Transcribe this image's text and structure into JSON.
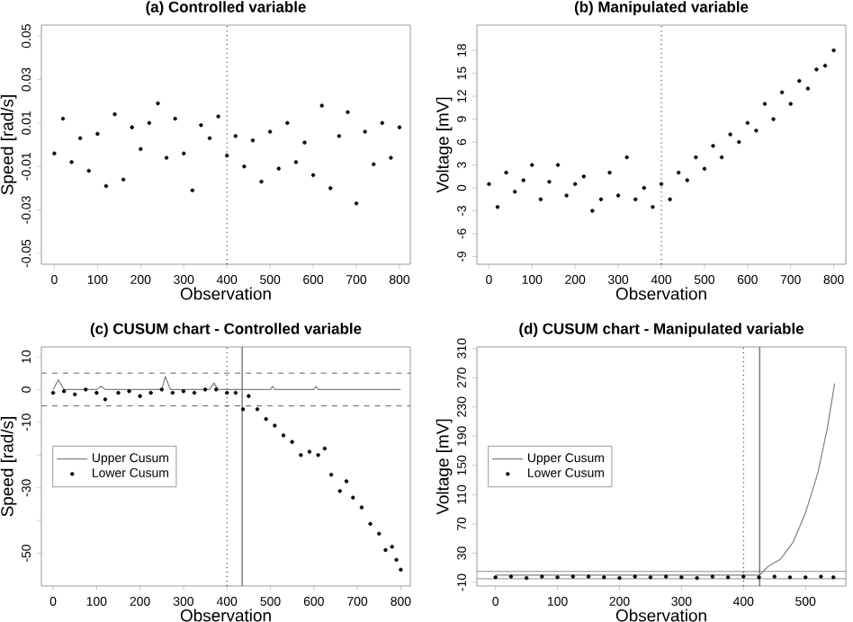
{
  "chart_data": [
    {
      "type": "scatter",
      "title": "**(a) Controlled variable**",
      "xlabel": "Observation",
      "ylabel": "Speed [rad/s]",
      "marker": "circle",
      "xlim": [
        -30,
        825
      ],
      "ylim": [
        -0.055,
        0.055
      ],
      "xticks": [
        0,
        100,
        200,
        300,
        400,
        500,
        600,
        700,
        800
      ],
      "yticks": [
        -0.05,
        -0.03,
        -0.01,
        0.01,
        0.03,
        0.05
      ],
      "x": [
        0,
        20,
        40,
        60,
        80,
        100,
        120,
        140,
        160,
        180,
        200,
        220,
        240,
        260,
        280,
        300,
        320,
        340,
        360,
        380,
        400,
        420,
        440,
        460,
        480,
        500,
        520,
        540,
        560,
        580,
        600,
        620,
        640,
        660,
        680,
        700,
        720,
        740,
        760,
        780,
        800
      ],
      "series": [
        {
          "color": "#000000",
          "values": [
            -0.004,
            0.012,
            -0.008,
            0.003,
            -0.012,
            0.005,
            -0.019,
            0.014,
            -0.016,
            0.008,
            -0.002,
            0.01,
            0.019,
            -0.006,
            0.012,
            -0.004,
            -0.021,
            0.009,
            0.003,
            0.013,
            -0.005,
            0.004,
            -0.01,
            0.002,
            -0.017,
            0.006,
            -0.011,
            0.01,
            -0.008,
            0.001,
            -0.014,
            0.018,
            -0.02,
            0.004,
            0.015,
            -0.027,
            0.006,
            -0.009,
            0.01,
            -0.006,
            0.008
          ]
        }
      ],
      "ref_lines": [
        {
          "axis": "x",
          "value": 400,
          "line_style": "dotted",
          "color": "#000000"
        }
      ]
    },
    {
      "type": "scatter",
      "title": "**(b) Manipulated variable**",
      "xlabel": "Observation",
      "ylabel": "Voltage [mV]",
      "marker": "circle",
      "xlim": [
        -28,
        828
      ],
      "ylim": [
        -10,
        21.3
      ],
      "xticks": [
        0,
        100,
        200,
        300,
        400,
        500,
        600,
        700,
        800
      ],
      "yticks": [
        -9,
        -6,
        -3,
        0,
        3,
        6,
        9,
        12,
        15,
        18
      ],
      "x": [
        0,
        20,
        40,
        60,
        80,
        100,
        120,
        140,
        160,
        180,
        200,
        220,
        240,
        260,
        280,
        300,
        320,
        340,
        360,
        380,
        400,
        420,
        440,
        460,
        480,
        500,
        520,
        540,
        560,
        580,
        600,
        620,
        640,
        660,
        680,
        700,
        720,
        740,
        760,
        780,
        800
      ],
      "series": [
        {
          "color": "#000000",
          "values": [
            0.5,
            -2.5,
            2.0,
            -0.5,
            1.0,
            3.0,
            -1.5,
            0.8,
            3.0,
            -1.0,
            0.5,
            1.5,
            -3.0,
            -1.5,
            2.0,
            -1.0,
            4.0,
            -1.5,
            0.0,
            -2.5,
            0.5,
            -1.5,
            2.0,
            1.0,
            4.0,
            2.5,
            5.5,
            4.0,
            7.0,
            6.0,
            8.5,
            7.5,
            11.0,
            9.0,
            12.5,
            11.0,
            14.0,
            13.0,
            15.5,
            16.0,
            18.0
          ]
        }
      ],
      "ref_lines": [
        {
          "axis": "x",
          "value": 400,
          "line_style": "dotted",
          "color": "#000000"
        }
      ]
    },
    {
      "type": "line",
      "title": "**(c) CUSUM chart - Controlled variable**",
      "xlabel": "Observation",
      "ylabel": "Speed [rad/s]",
      "legend": "left",
      "xlim": [
        -27,
        822
      ],
      "ylim": [
        -60,
        13
      ],
      "xticks": [
        0,
        100,
        200,
        300,
        400,
        500,
        600,
        700,
        800
      ],
      "yticks": [
        -50,
        {
          "value": -40,
          "label": null
        },
        -30,
        {
          "value": -20,
          "label": null
        },
        -10,
        0,
        10
      ],
      "series": [
        {
          "name": "Upper Cusum",
          "type": "line",
          "marker": "none",
          "color": "#808080",
          "x": [
            0,
            12,
            25,
            100,
            110,
            120,
            250,
            258,
            270,
            360,
            370,
            380,
            500,
            505,
            510,
            600,
            605,
            610,
            800
          ],
          "values": [
            0,
            3,
            0,
            0,
            1,
            0,
            0,
            4,
            0,
            0,
            2,
            0,
            0,
            1,
            0,
            0,
            1,
            0,
            0
          ]
        },
        {
          "name": "Lower Cusum",
          "type": "scatter",
          "marker": "circle",
          "color": "#000000",
          "x": [
            0,
            25,
            50,
            75,
            100,
            120,
            150,
            175,
            200,
            225,
            250,
            275,
            300,
            325,
            350,
            375,
            400,
            420,
            437,
            450,
            470,
            490,
            510,
            530,
            550,
            570,
            590,
            610,
            625,
            640,
            660,
            675,
            690,
            710,
            730,
            750,
            765,
            780,
            790,
            800
          ],
          "values": [
            -1,
            -0.5,
            -1.5,
            0,
            -1,
            -3,
            -1,
            -0.5,
            -2,
            -1,
            0,
            -1,
            -0.5,
            -1,
            0,
            0,
            -1,
            -1,
            -6,
            -2,
            -6,
            -9,
            -11,
            -14,
            -16,
            -20,
            -19,
            -20,
            -18,
            -26,
            -31,
            -28,
            -33,
            -36,
            -41,
            -44,
            -49,
            -48,
            -52,
            -55
          ]
        }
      ],
      "ref_lines": [
        {
          "axis": "y",
          "value": 5,
          "line_style": "dashed",
          "color": "#606060"
        },
        {
          "axis": "y",
          "value": -5,
          "line_style": "dashed",
          "color": "#606060"
        },
        {
          "axis": "x",
          "value": 400,
          "line_style": "dotted",
          "color": "#000000"
        },
        {
          "axis": "x",
          "value": 435,
          "line_style": "solid",
          "color": "#404040"
        }
      ]
    },
    {
      "type": "line",
      "title": "**(d) CUSUM chart - Manipulated variable**",
      "xlabel": "Observation",
      "ylabel": "Voltage [mV]",
      "legend": "left",
      "xlim": [
        -30,
        565
      ],
      "ylim": [
        -15,
        312
      ],
      "xticks": [
        0,
        100,
        200,
        300,
        400,
        500
      ],
      "yticks": [
        -10,
        30,
        70,
        110,
        150,
        190,
        230,
        270,
        310
      ],
      "series": [
        {
          "name": "Upper Cusum",
          "type": "line",
          "marker": "none",
          "color": "#808080",
          "x": [
            0,
            100,
            200,
            300,
            400,
            426,
            440,
            460,
            480,
            500,
            520,
            535,
            547
          ],
          "values": [
            0,
            0,
            0,
            0,
            0,
            0,
            12,
            22,
            45,
            85,
            140,
            200,
            262
          ]
        },
        {
          "name": "Lower Cusum",
          "type": "scatter",
          "marker": "circle",
          "color": "#000000",
          "x": [
            0,
            25,
            50,
            75,
            100,
            125,
            150,
            175,
            200,
            225,
            250,
            275,
            300,
            325,
            350,
            375,
            400,
            425,
            450,
            475,
            500,
            525,
            545
          ],
          "values": [
            -3,
            -2,
            -4,
            -2,
            -3,
            -2,
            -2,
            -3,
            -4,
            -2,
            -3,
            -2,
            -3,
            -4,
            -2,
            -3,
            -2,
            -3,
            -2,
            -3,
            -3,
            -2,
            -3
          ]
        }
      ],
      "ref_lines": [
        {
          "axis": "y",
          "value": 5,
          "line_style": "solid",
          "color": "#909090"
        },
        {
          "axis": "y",
          "value": -5,
          "line_style": "solid",
          "color": "#909090"
        },
        {
          "axis": "x",
          "value": 400,
          "line_style": "dotted",
          "color": "#000000"
        },
        {
          "axis": "x",
          "value": 426,
          "line_style": "solid",
          "color": "#404040"
        }
      ]
    }
  ]
}
